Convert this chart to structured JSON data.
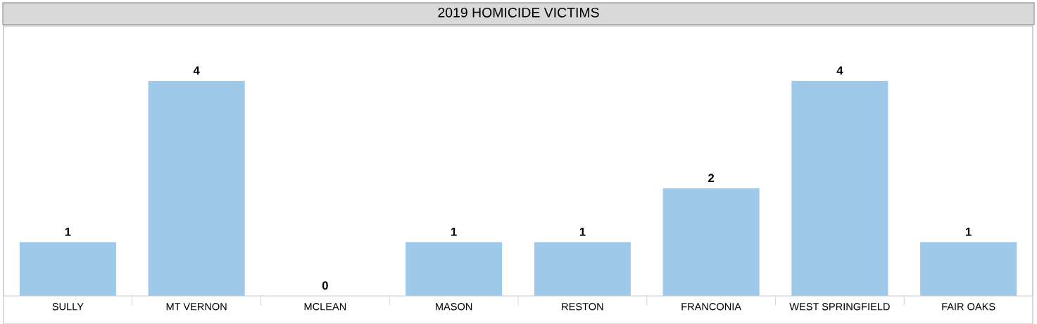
{
  "chart_data": {
    "type": "bar",
    "title": "2019 HOMICIDE VICTIMS",
    "categories": [
      "SULLY",
      "MT VERNON",
      "MCLEAN",
      "MASON",
      "RESTON",
      "FRANCONIA",
      "WEST SPRINGFIELD",
      "FAIR OAKS"
    ],
    "values": [
      1,
      4,
      0,
      1,
      1,
      2,
      4,
      1
    ],
    "color": "#9fc9e8",
    "data_labels": true,
    "grid": false,
    "legend": false,
    "tick_labels": "x"
  }
}
